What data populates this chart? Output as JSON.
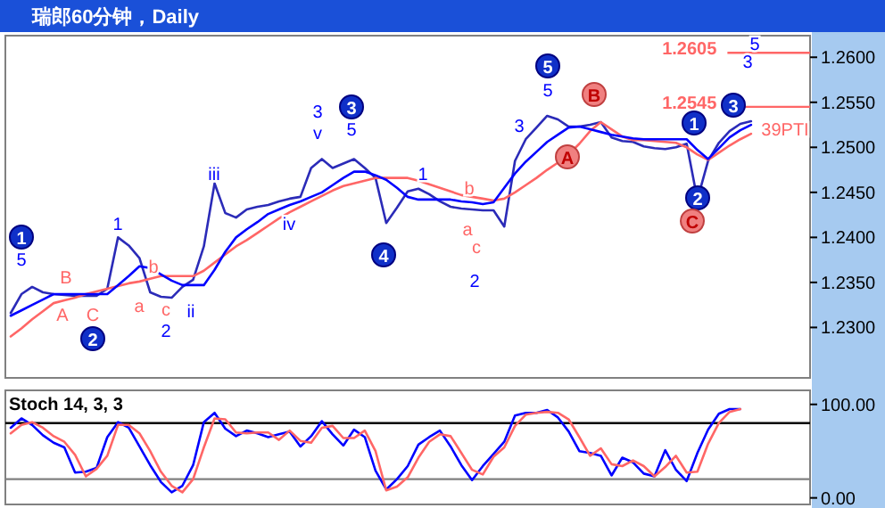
{
  "chart_data": [
    {
      "type": "line",
      "title": "瑞郎60分钟，Daily",
      "ylim": [
        1.2244,
        1.2624
      ],
      "tick_labels": "y",
      "categories": [
        null,
        null,
        null,
        null,
        null,
        null,
        null,
        null,
        null,
        null,
        null,
        null,
        null,
        null,
        null,
        null,
        null,
        null,
        null,
        null,
        null,
        null,
        null,
        null,
        null,
        null,
        null,
        null,
        null,
        null,
        null,
        null,
        null,
        null,
        null,
        null,
        null,
        null,
        null,
        null,
        null,
        null,
        null,
        null,
        null,
        null,
        null,
        null,
        null,
        null,
        null,
        null,
        null,
        null,
        null,
        null,
        null,
        null,
        null,
        null,
        null,
        null,
        null,
        null,
        null,
        null,
        null,
        null,
        null,
        null,
        null,
        null,
        null,
        null,
        null
      ],
      "yticks": [
        {
          "value": 1.23,
          "label": "1.2300"
        },
        {
          "value": 1.235,
          "label": "1.2350"
        },
        {
          "value": 1.24,
          "label": "1.2400"
        },
        {
          "value": 1.245,
          "label": "1.2450"
        },
        {
          "value": 1.25,
          "label": "1.2500"
        },
        {
          "value": 1.255,
          "label": "1.2550"
        },
        {
          "value": 1.26,
          "label": "1.2600"
        }
      ],
      "series": [
        {
          "color": "#2b2bb8",
          "values": [
            1.2316,
            1.2337,
            1.2345,
            1.2339,
            1.2337,
            1.2336,
            1.2335,
            1.2335,
            1.2335,
            1.2343,
            1.24,
            1.2391,
            1.2377,
            1.2339,
            1.2334,
            1.2333,
            1.2345,
            1.2353,
            1.239,
            1.246,
            1.2427,
            1.2422,
            1.2431,
            1.2434,
            1.2436,
            1.244,
            1.2443,
            1.2445,
            1.2477,
            1.2487,
            1.2477,
            1.2482,
            1.2487,
            1.2477,
            1.2466,
            1.2416,
            1.2433,
            1.2451,
            1.2454,
            1.2448,
            1.244,
            1.2434,
            1.2432,
            1.2431,
            1.243,
            1.243,
            1.2412,
            1.2485,
            1.2509,
            1.2522,
            1.2535,
            1.2531,
            1.2523,
            1.2523,
            1.2525,
            1.2528,
            1.2511,
            1.2507,
            1.2506,
            1.2501,
            1.2499,
            1.2498,
            1.25,
            1.2504,
            1.2442,
            1.2485,
            1.2505,
            1.2518,
            1.2526,
            1.2529,
            null,
            null,
            null,
            null,
            null
          ]
        },
        {
          "color": "#ff6666",
          "values": [
            1.229,
            1.2299,
            1.2309,
            1.2318,
            1.2327,
            1.233,
            1.2333,
            1.2337,
            1.234,
            1.2343,
            1.2346,
            1.2349,
            1.2351,
            1.2354,
            1.2357,
            1.2357,
            1.2357,
            1.2357,
            1.2363,
            1.2372,
            1.2381,
            1.239,
            1.2397,
            1.2405,
            1.2413,
            1.2421,
            1.2428,
            1.2434,
            1.244,
            1.2446,
            1.2452,
            1.2457,
            1.246,
            1.2463,
            1.2466,
            1.2466,
            1.2466,
            1.2466,
            1.2463,
            1.2459,
            1.2455,
            1.2451,
            1.2447,
            1.2445,
            1.2443,
            1.2441,
            1.2443,
            1.245,
            1.2458,
            1.2466,
            1.2475,
            1.2483,
            1.2492,
            1.2504,
            1.2518,
            1.2528,
            1.252,
            1.2512,
            1.2508,
            1.2508,
            1.2507,
            1.2506,
            1.2505,
            1.25,
            1.2492,
            1.2486,
            1.2494,
            1.2502,
            1.2509,
            1.2515,
            null,
            null,
            null,
            null,
            null
          ]
        },
        {
          "color": "#0000ff",
          "values": [
            1.2313,
            1.2319,
            1.2325,
            1.2331,
            1.2337,
            1.2337,
            1.2337,
            1.2337,
            1.2337,
            1.2337,
            1.2347,
            1.2357,
            1.2368,
            1.2366,
            1.2359,
            1.2352,
            1.2347,
            1.2347,
            1.2347,
            1.2364,
            1.2384,
            1.24,
            1.2409,
            1.2417,
            1.2426,
            1.2431,
            1.2436,
            1.244,
            1.2445,
            1.245,
            1.2458,
            1.2466,
            1.2473,
            1.2473,
            1.2469,
            1.2464,
            1.2455,
            1.2445,
            1.2442,
            1.2442,
            1.2442,
            1.2442,
            1.244,
            1.2439,
            1.2437,
            1.2439,
            1.2455,
            1.2471,
            1.2484,
            1.2495,
            1.2506,
            1.2514,
            1.2522,
            1.2523,
            1.252,
            1.2517,
            1.2514,
            1.2512,
            1.251,
            1.2509,
            1.2509,
            1.2509,
            1.2509,
            1.2509,
            1.2497,
            1.2487,
            1.2499,
            1.2511,
            1.2519,
            1.2525,
            null,
            null,
            null,
            null,
            null
          ]
        }
      ],
      "ref_lines": [
        {
          "axis": "y",
          "value": 1.2605,
          "label": "1.2605",
          "color": "#ff6666"
        },
        {
          "axis": "y",
          "value": 1.2545,
          "label": "1.2545",
          "color": "#ff6666"
        }
      ],
      "annotations": [
        "1",
        "2",
        "3",
        "4",
        "5",
        "1",
        "2",
        "3",
        "5",
        "1",
        "iii",
        "ii",
        "2",
        "3",
        "v",
        "5",
        "iv",
        "1",
        "3",
        "5",
        "2",
        "5",
        "3",
        "B",
        "A",
        "C",
        "a",
        "b",
        "c",
        "b",
        "a",
        "c",
        "39PTI",
        "A",
        "B",
        "C"
      ]
    },
    {
      "type": "line",
      "title": "Stoch 14, 3, 3",
      "ylim": [
        -7,
        115
      ],
      "tick_labels": "y",
      "categories": [
        null,
        null,
        null,
        null,
        null,
        null,
        null,
        null,
        null,
        null,
        null,
        null,
        null,
        null,
        null,
        null,
        null,
        null,
        null,
        null,
        null,
        null,
        null,
        null,
        null,
        null,
        null,
        null,
        null,
        null,
        null,
        null,
        null,
        null,
        null,
        null,
        null,
        null,
        null,
        null,
        null,
        null,
        null,
        null,
        null,
        null,
        null,
        null,
        null,
        null,
        null,
        null,
        null,
        null,
        null,
        null,
        null,
        null,
        null,
        null,
        null,
        null,
        null,
        null,
        null,
        null,
        null,
        null,
        null,
        null,
        null,
        null,
        null,
        null,
        null
      ],
      "yticks": [
        {
          "value": 0,
          "label": "0.00"
        },
        {
          "value": 100,
          "label": "100.00"
        }
      ],
      "series": [
        {
          "color": "#0000ff",
          "values": [
            75,
            85,
            78,
            67,
            59,
            54,
            27,
            28,
            32,
            65,
            81,
            75,
            55,
            35,
            17,
            6,
            13,
            35,
            81,
            91,
            74,
            66,
            72,
            69,
            65,
            68,
            71,
            55,
            66,
            82,
            68,
            56,
            73,
            65,
            29,
            9,
            20,
            34,
            57,
            65,
            72,
            55,
            35,
            19,
            34,
            47,
            60,
            88,
            91,
            91,
            94,
            86,
            71,
            50,
            48,
            45,
            24,
            43,
            38,
            26,
            23,
            51,
            30,
            18,
            48,
            73,
            90,
            95,
            95,
            null,
            null,
            null,
            null,
            null,
            null
          ]
        },
        {
          "color": "#ff6666",
          "values": [
            69,
            78,
            81,
            75,
            66,
            60,
            46,
            23,
            31,
            45,
            78,
            78,
            69,
            50,
            28,
            13,
            6,
            20,
            54,
            85,
            84,
            70,
            69,
            70,
            70,
            62,
            72,
            61,
            59,
            75,
            77,
            64,
            64,
            72,
            50,
            8,
            12,
            22,
            43,
            60,
            68,
            66,
            48,
            30,
            25,
            44,
            54,
            77,
            89,
            91,
            92,
            91,
            84,
            65,
            45,
            53,
            36,
            34,
            40,
            34,
            23,
            33,
            45,
            27,
            28,
            58,
            80,
            92,
            95,
            null,
            null,
            null,
            null,
            null,
            null
          ]
        }
      ],
      "ref_lines": [
        {
          "axis": "y",
          "value": 80,
          "color": "#000000"
        },
        {
          "axis": "y",
          "value": 20,
          "color": "#808080"
        }
      ]
    }
  ]
}
